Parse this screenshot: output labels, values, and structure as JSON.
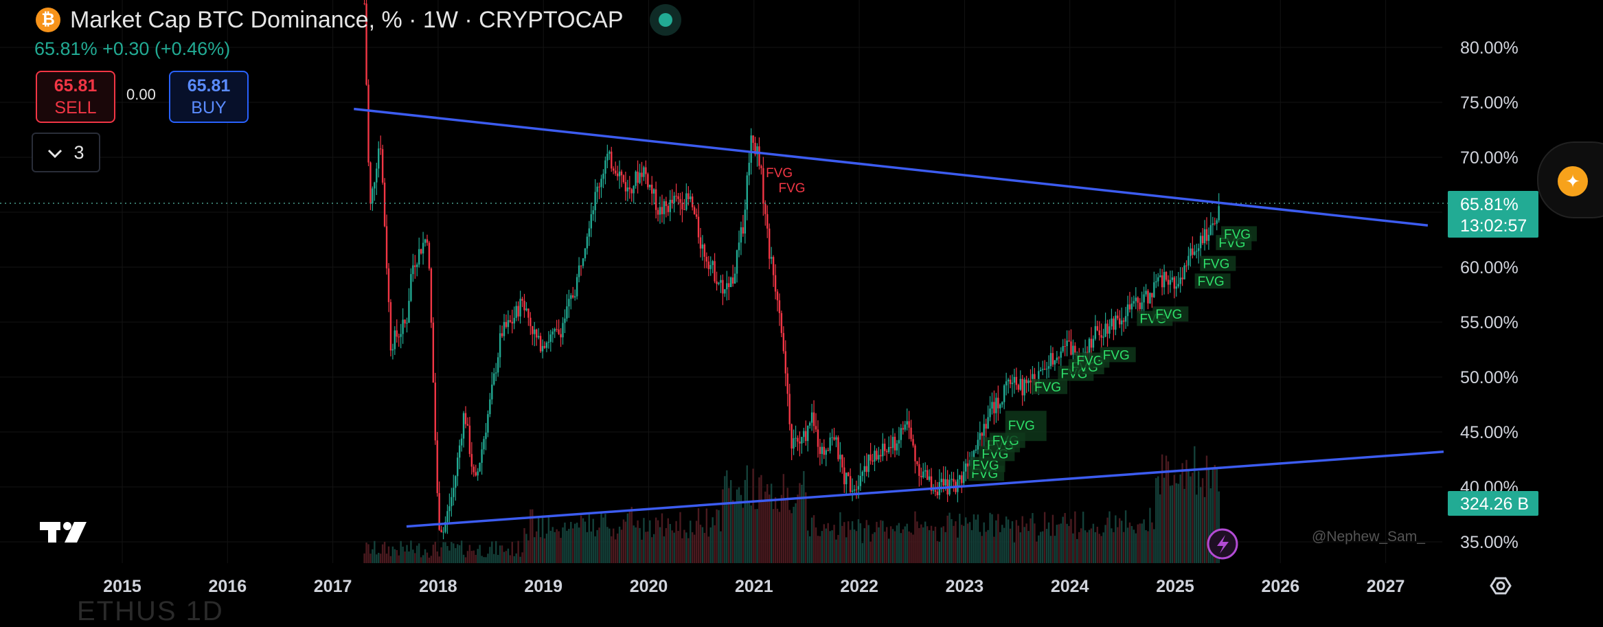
{
  "header": {
    "symbol_icon": "bitcoin-icon",
    "title": "Market Cap BTC Dominance, % · 1W · CRYPTOCAP",
    "live_indicator": "live-dot-icon",
    "last_change": "65.81% +0.30 (+0.46%)"
  },
  "trade": {
    "sell_value": "65.81",
    "sell_label": "SELL",
    "spread": "0.00",
    "buy_value": "65.81",
    "buy_label": "BUY"
  },
  "indicator_count": "3",
  "price_tag": {
    "value": "65.81%",
    "countdown": "13:02:57"
  },
  "volume_tag": "324.26 B",
  "watermark": "@Nephew_Sam_",
  "bottom_ghost_text": "ETHUS  1D",
  "colors": {
    "up": "#22ab94",
    "down": "#f23645",
    "trendline": "#3c5cf0",
    "fvg_up": "#2ee06a",
    "fvg_down": "#f23645",
    "accent": "#f7931a"
  },
  "chart_data": {
    "type": "candlestick",
    "title": "Market Cap BTC Dominance, %",
    "interval": "1W",
    "x_ticks": [
      "2015",
      "2016",
      "2017",
      "2018",
      "2019",
      "2020",
      "2021",
      "2022",
      "2023",
      "2024",
      "2025",
      "2026",
      "2027"
    ],
    "y_ticks": [
      "35.00%",
      "40.00%",
      "45.00%",
      "50.00%",
      "55.00%",
      "60.00%",
      "65.00%",
      "70.00%",
      "75.00%",
      "80.00%"
    ],
    "ylim": [
      33,
      84
    ],
    "last_value": 65.81,
    "close_path": [
      [
        2017.3,
        84
      ],
      [
        2017.35,
        65
      ],
      [
        2017.45,
        72
      ],
      [
        2017.55,
        53
      ],
      [
        2017.7,
        55
      ],
      [
        2017.75,
        60
      ],
      [
        2017.9,
        63
      ],
      [
        2017.93,
        56
      ],
      [
        2018.0,
        37
      ],
      [
        2018.05,
        36
      ],
      [
        2018.15,
        40
      ],
      [
        2018.25,
        47
      ],
      [
        2018.35,
        40
      ],
      [
        2018.5,
        48
      ],
      [
        2018.6,
        54
      ],
      [
        2018.7,
        55
      ],
      [
        2018.8,
        57
      ],
      [
        2018.95,
        53
      ],
      [
        2019.15,
        54
      ],
      [
        2019.3,
        58
      ],
      [
        2019.45,
        65
      ],
      [
        2019.6,
        70
      ],
      [
        2019.7,
        69
      ],
      [
        2019.8,
        67
      ],
      [
        2019.95,
        69
      ],
      [
        2020.1,
        65
      ],
      [
        2020.25,
        66
      ],
      [
        2020.4,
        66
      ],
      [
        2020.5,
        62
      ],
      [
        2020.6,
        60
      ],
      [
        2020.7,
        58
      ],
      [
        2020.8,
        59
      ],
      [
        2020.9,
        64
      ],
      [
        2020.97,
        72
      ],
      [
        2021.05,
        70
      ],
      [
        2021.15,
        61
      ],
      [
        2021.25,
        56
      ],
      [
        2021.35,
        44
      ],
      [
        2021.45,
        44
      ],
      [
        2021.55,
        46
      ],
      [
        2021.65,
        43
      ],
      [
        2021.75,
        45
      ],
      [
        2021.85,
        41
      ],
      [
        2021.95,
        40
      ],
      [
        2022.05,
        42
      ],
      [
        2022.2,
        43
      ],
      [
        2022.35,
        44
      ],
      [
        2022.45,
        46
      ],
      [
        2022.55,
        42
      ],
      [
        2022.7,
        40
      ],
      [
        2022.85,
        40
      ],
      [
        2022.95,
        40.5
      ],
      [
        2023.05,
        43
      ],
      [
        2023.15,
        45
      ],
      [
        2023.25,
        47
      ],
      [
        2023.35,
        48
      ],
      [
        2023.45,
        50
      ],
      [
        2023.55,
        49
      ],
      [
        2023.7,
        50
      ],
      [
        2023.85,
        52
      ],
      [
        2023.95,
        53
      ],
      [
        2024.1,
        52
      ],
      [
        2024.25,
        54
      ],
      [
        2024.4,
        55
      ],
      [
        2024.55,
        56
      ],
      [
        2024.7,
        57
      ],
      [
        2024.8,
        58
      ],
      [
        2024.9,
        59
      ],
      [
        2025.0,
        58
      ],
      [
        2025.1,
        60
      ],
      [
        2025.2,
        62
      ],
      [
        2025.3,
        63
      ],
      [
        2025.4,
        65
      ],
      [
        2025.43,
        65.81
      ]
    ],
    "trendlines": [
      {
        "name": "upper",
        "from": [
          2017.2,
          74.4
        ],
        "to": [
          2027.4,
          63.8
        ]
      },
      {
        "name": "lower",
        "from": [
          2017.7,
          36.4
        ],
        "to": [
          2027.55,
          43.2
        ]
      }
    ],
    "fvg_labels": [
      {
        "text": "FVG",
        "x": 2021.1,
        "y": 68.2,
        "dir": "down"
      },
      {
        "text": "FVG",
        "x": 2021.22,
        "y": 66.8,
        "dir": "down"
      },
      {
        "text": "FVG",
        "x": 2023.05,
        "y": 40.8,
        "dir": "up"
      },
      {
        "text": "FVG",
        "x": 2023.06,
        "y": 41.6,
        "dir": "up"
      },
      {
        "text": "FVG",
        "x": 2023.15,
        "y": 42.6,
        "dir": "up"
      },
      {
        "text": "FVG",
        "x": 2023.2,
        "y": 43.4,
        "dir": "up"
      },
      {
        "text": "FVG",
        "x": 2023.25,
        "y": 43.8,
        "dir": "up"
      },
      {
        "text": "FVG",
        "x": 2023.4,
        "y": 45.8,
        "dir": "up",
        "boxed": true
      },
      {
        "text": "FVG",
        "x": 2023.65,
        "y": 48.7,
        "dir": "up"
      },
      {
        "text": "FVG",
        "x": 2023.9,
        "y": 49.9,
        "dir": "up"
      },
      {
        "text": "FVG",
        "x": 2024.0,
        "y": 50.5,
        "dir": "up"
      },
      {
        "text": "FVG",
        "x": 2024.05,
        "y": 51.1,
        "dir": "up"
      },
      {
        "text": "FVG",
        "x": 2024.3,
        "y": 51.6,
        "dir": "up"
      },
      {
        "text": "FVG",
        "x": 2024.65,
        "y": 54.9,
        "dir": "up"
      },
      {
        "text": "FVG",
        "x": 2024.8,
        "y": 55.3,
        "dir": "up"
      },
      {
        "text": "FVG",
        "x": 2025.2,
        "y": 58.3,
        "dir": "up"
      },
      {
        "text": "FVG",
        "x": 2025.25,
        "y": 59.9,
        "dir": "up"
      },
      {
        "text": "FVG",
        "x": 2025.4,
        "y": 61.8,
        "dir": "up"
      },
      {
        "text": "FVG",
        "x": 2025.45,
        "y": 62.6,
        "dir": "up"
      }
    ]
  }
}
